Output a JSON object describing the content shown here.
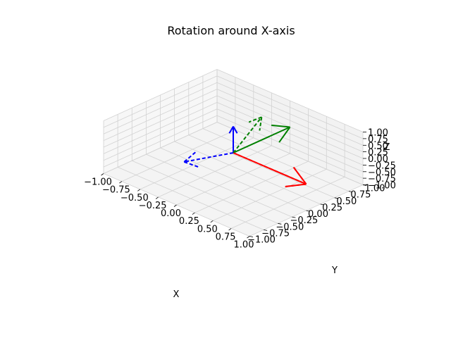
{
  "chart_data": {
    "type": "3d-quiver",
    "title": "Rotation around X-axis",
    "xlabel": "X",
    "ylabel": "Y",
    "zlabel": "Z",
    "xlim": [
      -1,
      1
    ],
    "ylim": [
      -1,
      1
    ],
    "zlim": [
      -1,
      1
    ],
    "x_ticks": [
      "−1.00",
      "−0.75",
      "−0.50",
      "−0.25",
      "0.00",
      "0.25",
      "0.50",
      "0.75",
      "1.00"
    ],
    "y_ticks": [
      "−1.00",
      "−0.75",
      "−0.50",
      "−0.25",
      "0.00",
      "0.25",
      "0.50",
      "0.75",
      "1.00"
    ],
    "z_ticks": [
      "−1.00",
      "−0.75",
      "−0.50",
      "−0.25",
      "0.00",
      "0.25",
      "0.50",
      "0.75",
      "1.00"
    ],
    "grid": true,
    "origin": [
      0,
      0,
      0
    ],
    "vectors": [
      {
        "id": "x-original",
        "color": "#ff0000",
        "style": "solid",
        "components": [
          1,
          0,
          0
        ]
      },
      {
        "id": "y-original",
        "color": "#008000",
        "style": "solid",
        "components": [
          0,
          1,
          0
        ]
      },
      {
        "id": "z-original",
        "color": "#0000ff",
        "style": "solid",
        "components": [
          0,
          0,
          1
        ]
      },
      {
        "id": "x-rotated",
        "color": "#ff0000",
        "style": "dashed",
        "components": [
          1,
          0,
          0
        ]
      },
      {
        "id": "y-rotated",
        "color": "#008000",
        "style": "dashed",
        "components": [
          0,
          0.5,
          0.866
        ]
      },
      {
        "id": "z-rotated",
        "color": "#0000ff",
        "style": "dashed",
        "components": [
          0,
          -0.866,
          0.5
        ]
      }
    ]
  }
}
